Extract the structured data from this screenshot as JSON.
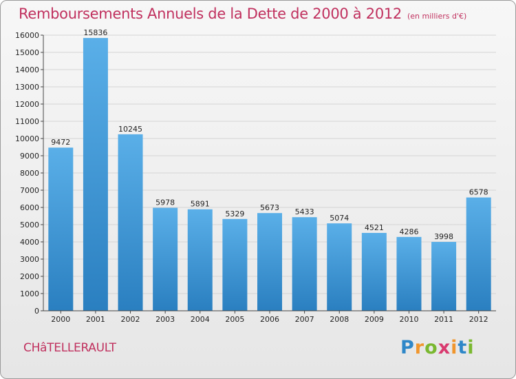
{
  "header": {
    "title": "Remboursements Annuels de la Dette de 2000 à 2012",
    "unit": "(en milliers d'€)"
  },
  "footer": {
    "city": "CHâTELLERAULT",
    "logo": {
      "letters": [
        "P",
        "r",
        "o",
        "x",
        "i",
        "t",
        "i"
      ],
      "colors": [
        "#2e87c8",
        "#f0962d",
        "#7ab830",
        "#d93a6f",
        "#f0962d",
        "#2e87c8",
        "#7ab830"
      ]
    }
  },
  "colors": {
    "bar_top": "#5aafe8",
    "bar_bottom": "#2a7fc0",
    "grid": "#d4d4d4",
    "axis": "#444444",
    "label": "#222222"
  },
  "chart_data": {
    "type": "bar",
    "categories": [
      "2000",
      "2001",
      "2002",
      "2003",
      "2004",
      "2005",
      "2006",
      "2007",
      "2008",
      "2009",
      "2010",
      "2011",
      "2012"
    ],
    "values": [
      9472,
      15836,
      10245,
      5978,
      5891,
      5329,
      5673,
      5433,
      5074,
      4521,
      4286,
      3998,
      6578
    ],
    "data_labels": [
      "9472",
      "15836",
      "10245",
      "5978",
      "5891",
      "5329",
      "5673",
      "5433",
      "5074",
      "4521",
      "4286",
      "3998",
      "6578"
    ],
    "title": "Remboursements Annuels de la Dette de 2000 à 2012",
    "xlabel": "",
    "ylabel": "",
    "ylim": [
      0,
      16000
    ],
    "yticks": [
      0,
      1000,
      2000,
      3000,
      4000,
      5000,
      6000,
      7000,
      8000,
      9000,
      10000,
      11000,
      12000,
      13000,
      14000,
      15000,
      16000
    ],
    "ytick_labels": [
      "0",
      "1000",
      "2000",
      "3000",
      "4000",
      "5000",
      "6000",
      "7000",
      "8000",
      "9000",
      "10000",
      "11000",
      "12000",
      "13000",
      "14000",
      "15000",
      "16000"
    ],
    "grid": true,
    "legend": "none"
  }
}
